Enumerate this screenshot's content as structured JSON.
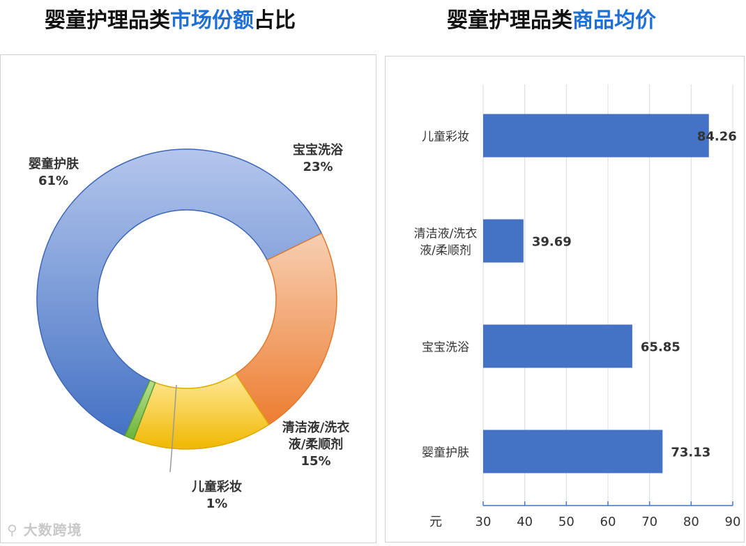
{
  "titles": {
    "left_prefix": "婴童护理品类",
    "left_highlight": "市场份额",
    "left_suffix": "占比",
    "right_prefix": "婴童护理品类",
    "right_highlight": "商品均价"
  },
  "watermark": "大数跨境",
  "colors": {
    "accent": "#1f6fd6",
    "bar": "#4472c4"
  },
  "chart_data": [
    {
      "type": "pie",
      "variant": "donut",
      "slices": [
        {
          "label": "婴童护肤",
          "value": 61,
          "display": "61%",
          "color_light": "#b4c6ec",
          "color_dark": "#4472c4",
          "edge": "#3d66b5"
        },
        {
          "label": "宝宝洗浴",
          "value": 23,
          "display": "23%",
          "color_light": "#f7cfb2",
          "color_dark": "#ed7d31",
          "edge": "#e07a2e"
        },
        {
          "label": "清洁液/洗衣液/柔顺剂",
          "value": 15,
          "display": "15%",
          "color_light": "#ffe99a",
          "color_dark": "#f0b800",
          "edge": "#dba800"
        },
        {
          "label": "儿童彩妆",
          "value": 1,
          "display": "1%",
          "color_light": "#b8e08e",
          "color_dark": "#6bb33a",
          "edge": "#5a9e2f"
        }
      ],
      "label_lines": {
        "婴童护肤": [
          "婴童护肤",
          "61%"
        ],
        "宝宝洗浴": [
          "宝宝洗浴",
          "23%"
        ],
        "清洁液/洗衣液/柔顺剂": [
          "清洁液/洗衣",
          "液/柔顺剂",
          "15%"
        ],
        "儿童彩妆": [
          "儿童彩妆",
          "1%"
        ]
      }
    },
    {
      "type": "bar",
      "orientation": "horizontal",
      "categories": [
        "儿童彩妆",
        "清洁液/洗衣液/柔顺剂",
        "宝宝洗浴",
        "婴童护肤"
      ],
      "category_lines": [
        [
          "儿童彩妆"
        ],
        [
          "清洁液/洗衣",
          "液/柔顺剂"
        ],
        [
          "宝宝洗浴"
        ],
        [
          "婴童护肤"
        ]
      ],
      "values": [
        84.26,
        39.69,
        65.85,
        73.13
      ],
      "value_labels": [
        "84.26",
        "39.69",
        "65.85",
        "73.13"
      ],
      "xlim": [
        30,
        90
      ],
      "xticks": [
        30,
        40,
        50,
        60,
        70,
        80,
        90
      ],
      "xlabel": "元",
      "grid": true
    }
  ]
}
